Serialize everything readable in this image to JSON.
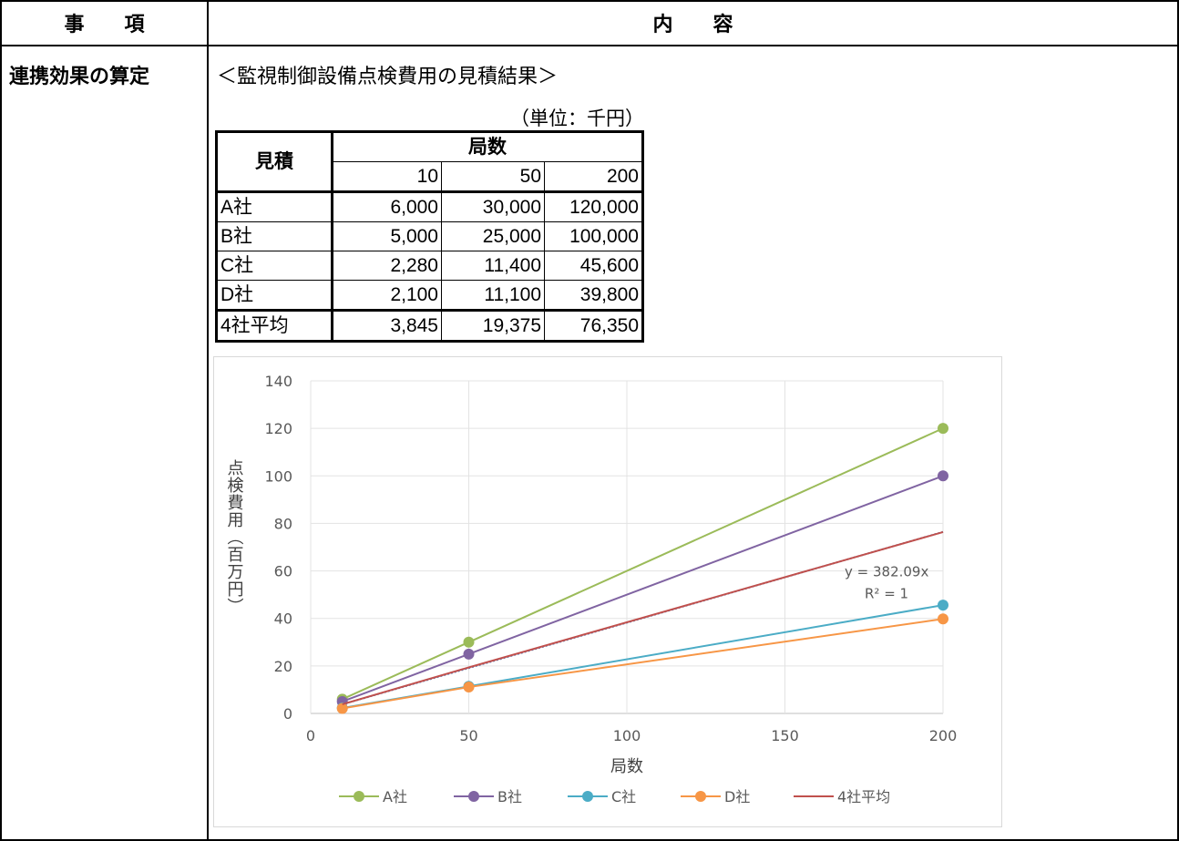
{
  "header": {
    "col1": "事　　項",
    "col2": "内　　容"
  },
  "row": {
    "label": "連携効果の算定",
    "subtitle": "＜監視制御設備点検費用の見積結果＞",
    "unit": "（単位：千円）"
  },
  "table": {
    "corner": "見積",
    "group_header": "局数",
    "columns": [
      "10",
      "50",
      "200"
    ],
    "rows": [
      {
        "name": "A社",
        "values": [
          "6,000",
          "30,000",
          "120,000"
        ]
      },
      {
        "name": "B社",
        "values": [
          "5,000",
          "25,000",
          "100,000"
        ]
      },
      {
        "name": "C社",
        "values": [
          "2,280",
          "11,400",
          "45,600"
        ]
      },
      {
        "name": "D社",
        "values": [
          "2,100",
          "11,100",
          "39,800"
        ]
      },
      {
        "name": "4社平均",
        "values": [
          "3,845",
          "19,375",
          "76,350"
        ]
      }
    ]
  },
  "chart_data": {
    "type": "scatter",
    "xlabel": "局数",
    "ylabel": "点検費用（百万円）",
    "xlim": [
      0,
      200
    ],
    "ylim": [
      0,
      140
    ],
    "xticks": [
      "0",
      "50",
      "100",
      "150",
      "200"
    ],
    "yticks": [
      "0",
      "20",
      "40",
      "60",
      "80",
      "100",
      "120",
      "140"
    ],
    "grid": true,
    "legend_position": "bottom",
    "series": [
      {
        "name": "A社",
        "color": "#9bbb59",
        "x": [
          10,
          50,
          200
        ],
        "y": [
          6,
          30,
          120
        ],
        "markers": true
      },
      {
        "name": "B社",
        "color": "#8064a2",
        "x": [
          10,
          50,
          200
        ],
        "y": [
          5,
          25,
          100
        ],
        "markers": true
      },
      {
        "name": "C社",
        "color": "#4bacc6",
        "x": [
          10,
          50,
          200
        ],
        "y": [
          2.28,
          11.4,
          45.6
        ],
        "markers": true
      },
      {
        "name": "D社",
        "color": "#f79646",
        "x": [
          10,
          50,
          200
        ],
        "y": [
          2.1,
          11.1,
          39.8
        ],
        "markers": true
      },
      {
        "name": "4社平均",
        "color": "#c0504d",
        "x": [
          10,
          50,
          200
        ],
        "y": [
          3.845,
          19.375,
          76.35
        ],
        "markers": false
      }
    ],
    "trendline": {
      "color": "#4f81bd",
      "slope": 0.38209,
      "equation": "y = 382.09x",
      "r2": "R² = 1"
    }
  }
}
